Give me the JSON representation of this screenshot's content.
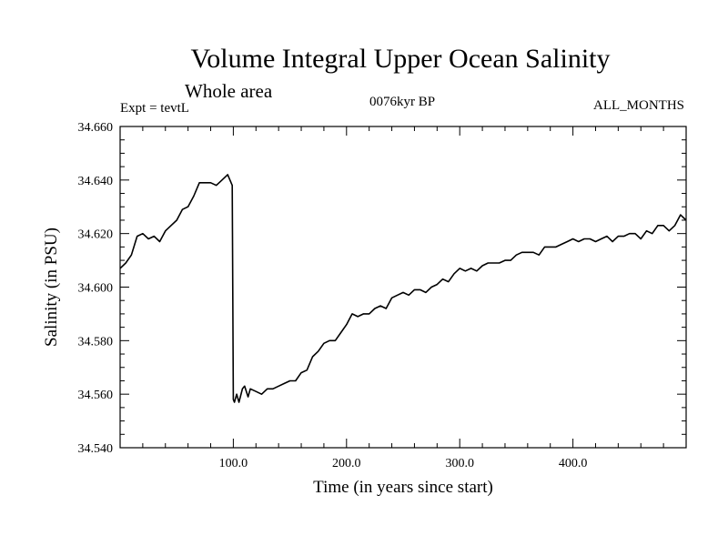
{
  "header": {
    "title": "Volume Integral Upper Ocean Salinity",
    "subtitle": "Whole area",
    "experiment": "Expt = tevtL",
    "period": "0076kyr BP",
    "months": "ALL_MONTHS"
  },
  "chart_data": {
    "type": "line",
    "title": "Volume Integral Upper Ocean Salinity",
    "subtitle": "Whole area",
    "xlabel": "Time (in years since start)",
    "ylabel": "Salinity (in PSU)",
    "xlim": [
      0,
      500
    ],
    "ylim": [
      34.54,
      34.66
    ],
    "x_ticks": [
      100,
      200,
      300,
      400
    ],
    "x_tick_labels": [
      "100.0",
      "200.0",
      "300.0",
      "400.0"
    ],
    "y_ticks": [
      34.54,
      34.56,
      34.58,
      34.6,
      34.62,
      34.64,
      34.66
    ],
    "y_tick_labels": [
      "34.540",
      "34.560",
      "34.580",
      "34.600",
      "34.620",
      "34.640",
      "34.660"
    ],
    "grid": false,
    "series": [
      {
        "name": "",
        "color": "#000000",
        "x": [
          0,
          5,
          10,
          15,
          20,
          25,
          30,
          35,
          40,
          45,
          50,
          55,
          60,
          65,
          70,
          75,
          80,
          85,
          90,
          95,
          97,
          99,
          100,
          101,
          103,
          105,
          108,
          110,
          113,
          115,
          120,
          125,
          130,
          135,
          140,
          145,
          150,
          155,
          160,
          165,
          170,
          175,
          180,
          185,
          190,
          195,
          200,
          205,
          210,
          215,
          220,
          225,
          230,
          235,
          240,
          245,
          250,
          255,
          260,
          265,
          270,
          275,
          280,
          285,
          290,
          295,
          300,
          305,
          310,
          315,
          320,
          325,
          330,
          335,
          340,
          345,
          350,
          355,
          360,
          365,
          370,
          375,
          380,
          385,
          390,
          395,
          400,
          405,
          410,
          415,
          420,
          425,
          430,
          435,
          440,
          445,
          450,
          455,
          460,
          465,
          470,
          475,
          480,
          485,
          490,
          495,
          500
        ],
        "values": [
          34.607,
          34.609,
          34.612,
          34.619,
          34.62,
          34.618,
          34.619,
          34.617,
          34.621,
          34.623,
          34.625,
          34.629,
          34.63,
          34.634,
          34.639,
          34.639,
          34.639,
          34.638,
          34.64,
          34.642,
          34.64,
          34.638,
          34.558,
          34.557,
          34.56,
          34.557,
          34.562,
          34.563,
          34.559,
          34.562,
          34.561,
          34.56,
          34.562,
          34.562,
          34.563,
          34.564,
          34.565,
          34.565,
          34.568,
          34.569,
          34.574,
          34.576,
          34.579,
          34.58,
          34.58,
          34.583,
          34.586,
          34.59,
          34.589,
          34.59,
          34.59,
          34.592,
          34.593,
          34.592,
          34.596,
          34.597,
          34.598,
          34.597,
          34.599,
          34.599,
          34.598,
          34.6,
          34.601,
          34.603,
          34.602,
          34.605,
          34.607,
          34.606,
          34.607,
          34.606,
          34.608,
          34.609,
          34.609,
          34.609,
          34.61,
          34.61,
          34.612,
          34.613,
          34.613,
          34.613,
          34.612,
          34.615,
          34.615,
          34.615,
          34.616,
          34.617,
          34.618,
          34.617,
          34.618,
          34.618,
          34.617,
          34.618,
          34.619,
          34.617,
          34.619,
          34.619,
          34.62,
          34.62,
          34.618,
          34.621,
          34.62,
          34.623,
          34.623,
          34.621,
          34.623,
          34.627,
          34.625
        ]
      }
    ]
  }
}
